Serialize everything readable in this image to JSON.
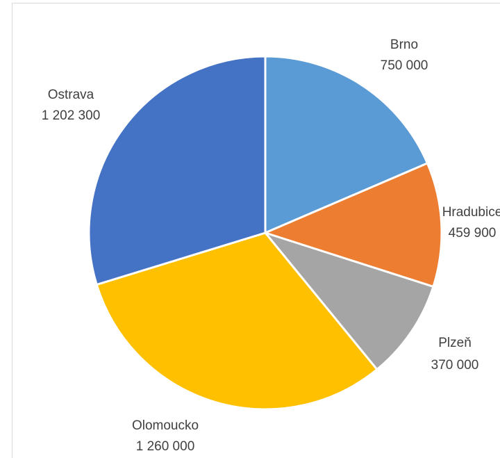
{
  "chart_data": {
    "type": "pie",
    "title": "",
    "slices": [
      {
        "name": "Brno",
        "value": 750000,
        "label": "750 000",
        "color": "#5b9bd5"
      },
      {
        "name": "Hradubice",
        "value": 459900,
        "label": "459 900",
        "color": "#ed7d31"
      },
      {
        "name": "Plzeň",
        "value": 370000,
        "label": "370 000",
        "color": "#a5a5a5"
      },
      {
        "name": "Olomoucko",
        "value": 1260000,
        "label": "1 260 000",
        "color": "#ffc000"
      },
      {
        "name": "Ostrava",
        "value": 1202300,
        "label": "1 202 300",
        "color": "#4472c4"
      }
    ],
    "start_angle": "12 o'clock",
    "direction": "clockwise",
    "legend": "none",
    "data_labels": "category name and value, outside end"
  }
}
